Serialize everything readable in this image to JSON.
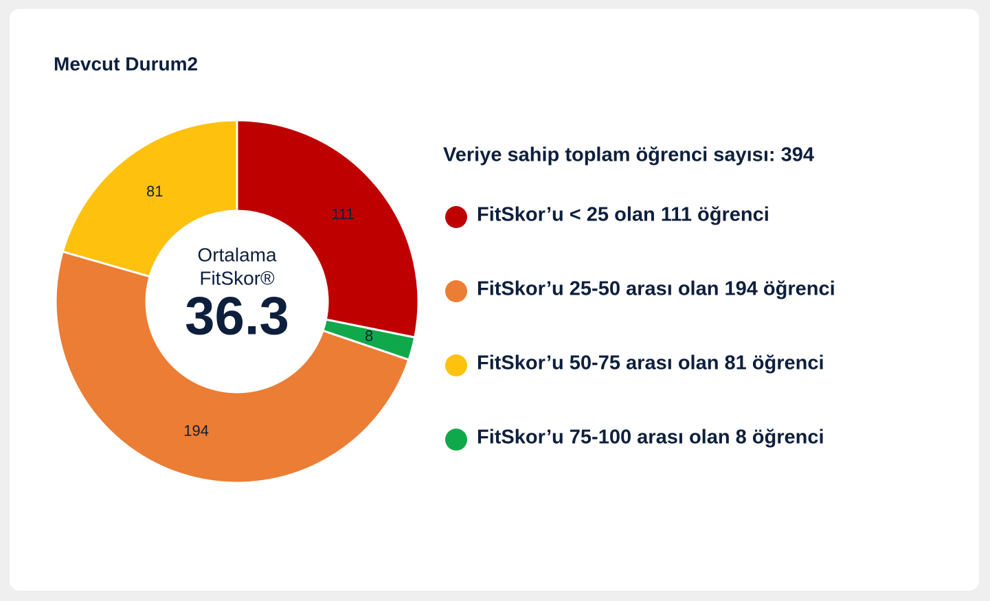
{
  "chart_data": {
    "type": "donut",
    "title": "Mevcut Durum2",
    "values": [
      111,
      8,
      194,
      81
    ],
    "colors": [
      "#bf0000",
      "#0fa84b",
      "#eb7d34",
      "#fec10e"
    ],
    "center_label": [
      "Ortalama",
      "FitSkor®"
    ],
    "center_value": 36.3,
    "total_label": "Veriye sahip toplam öğrenci sayısı: 394",
    "legend": [
      {
        "label": "FitSkor’u < 25 olan 111 öğrenci",
        "color": "#bf0000"
      },
      {
        "label": "FitSkor’u 25-50 arası olan 194 öğrenci",
        "color": "#eb7d34"
      },
      {
        "label": "FitSkor’u 50-75 arası olan 81 öğrenci",
        "color": "#fec10e"
      },
      {
        "label": "FitSkor’u 75-100 arası olan 8 öğrenci",
        "color": "#0fa84b"
      }
    ]
  }
}
